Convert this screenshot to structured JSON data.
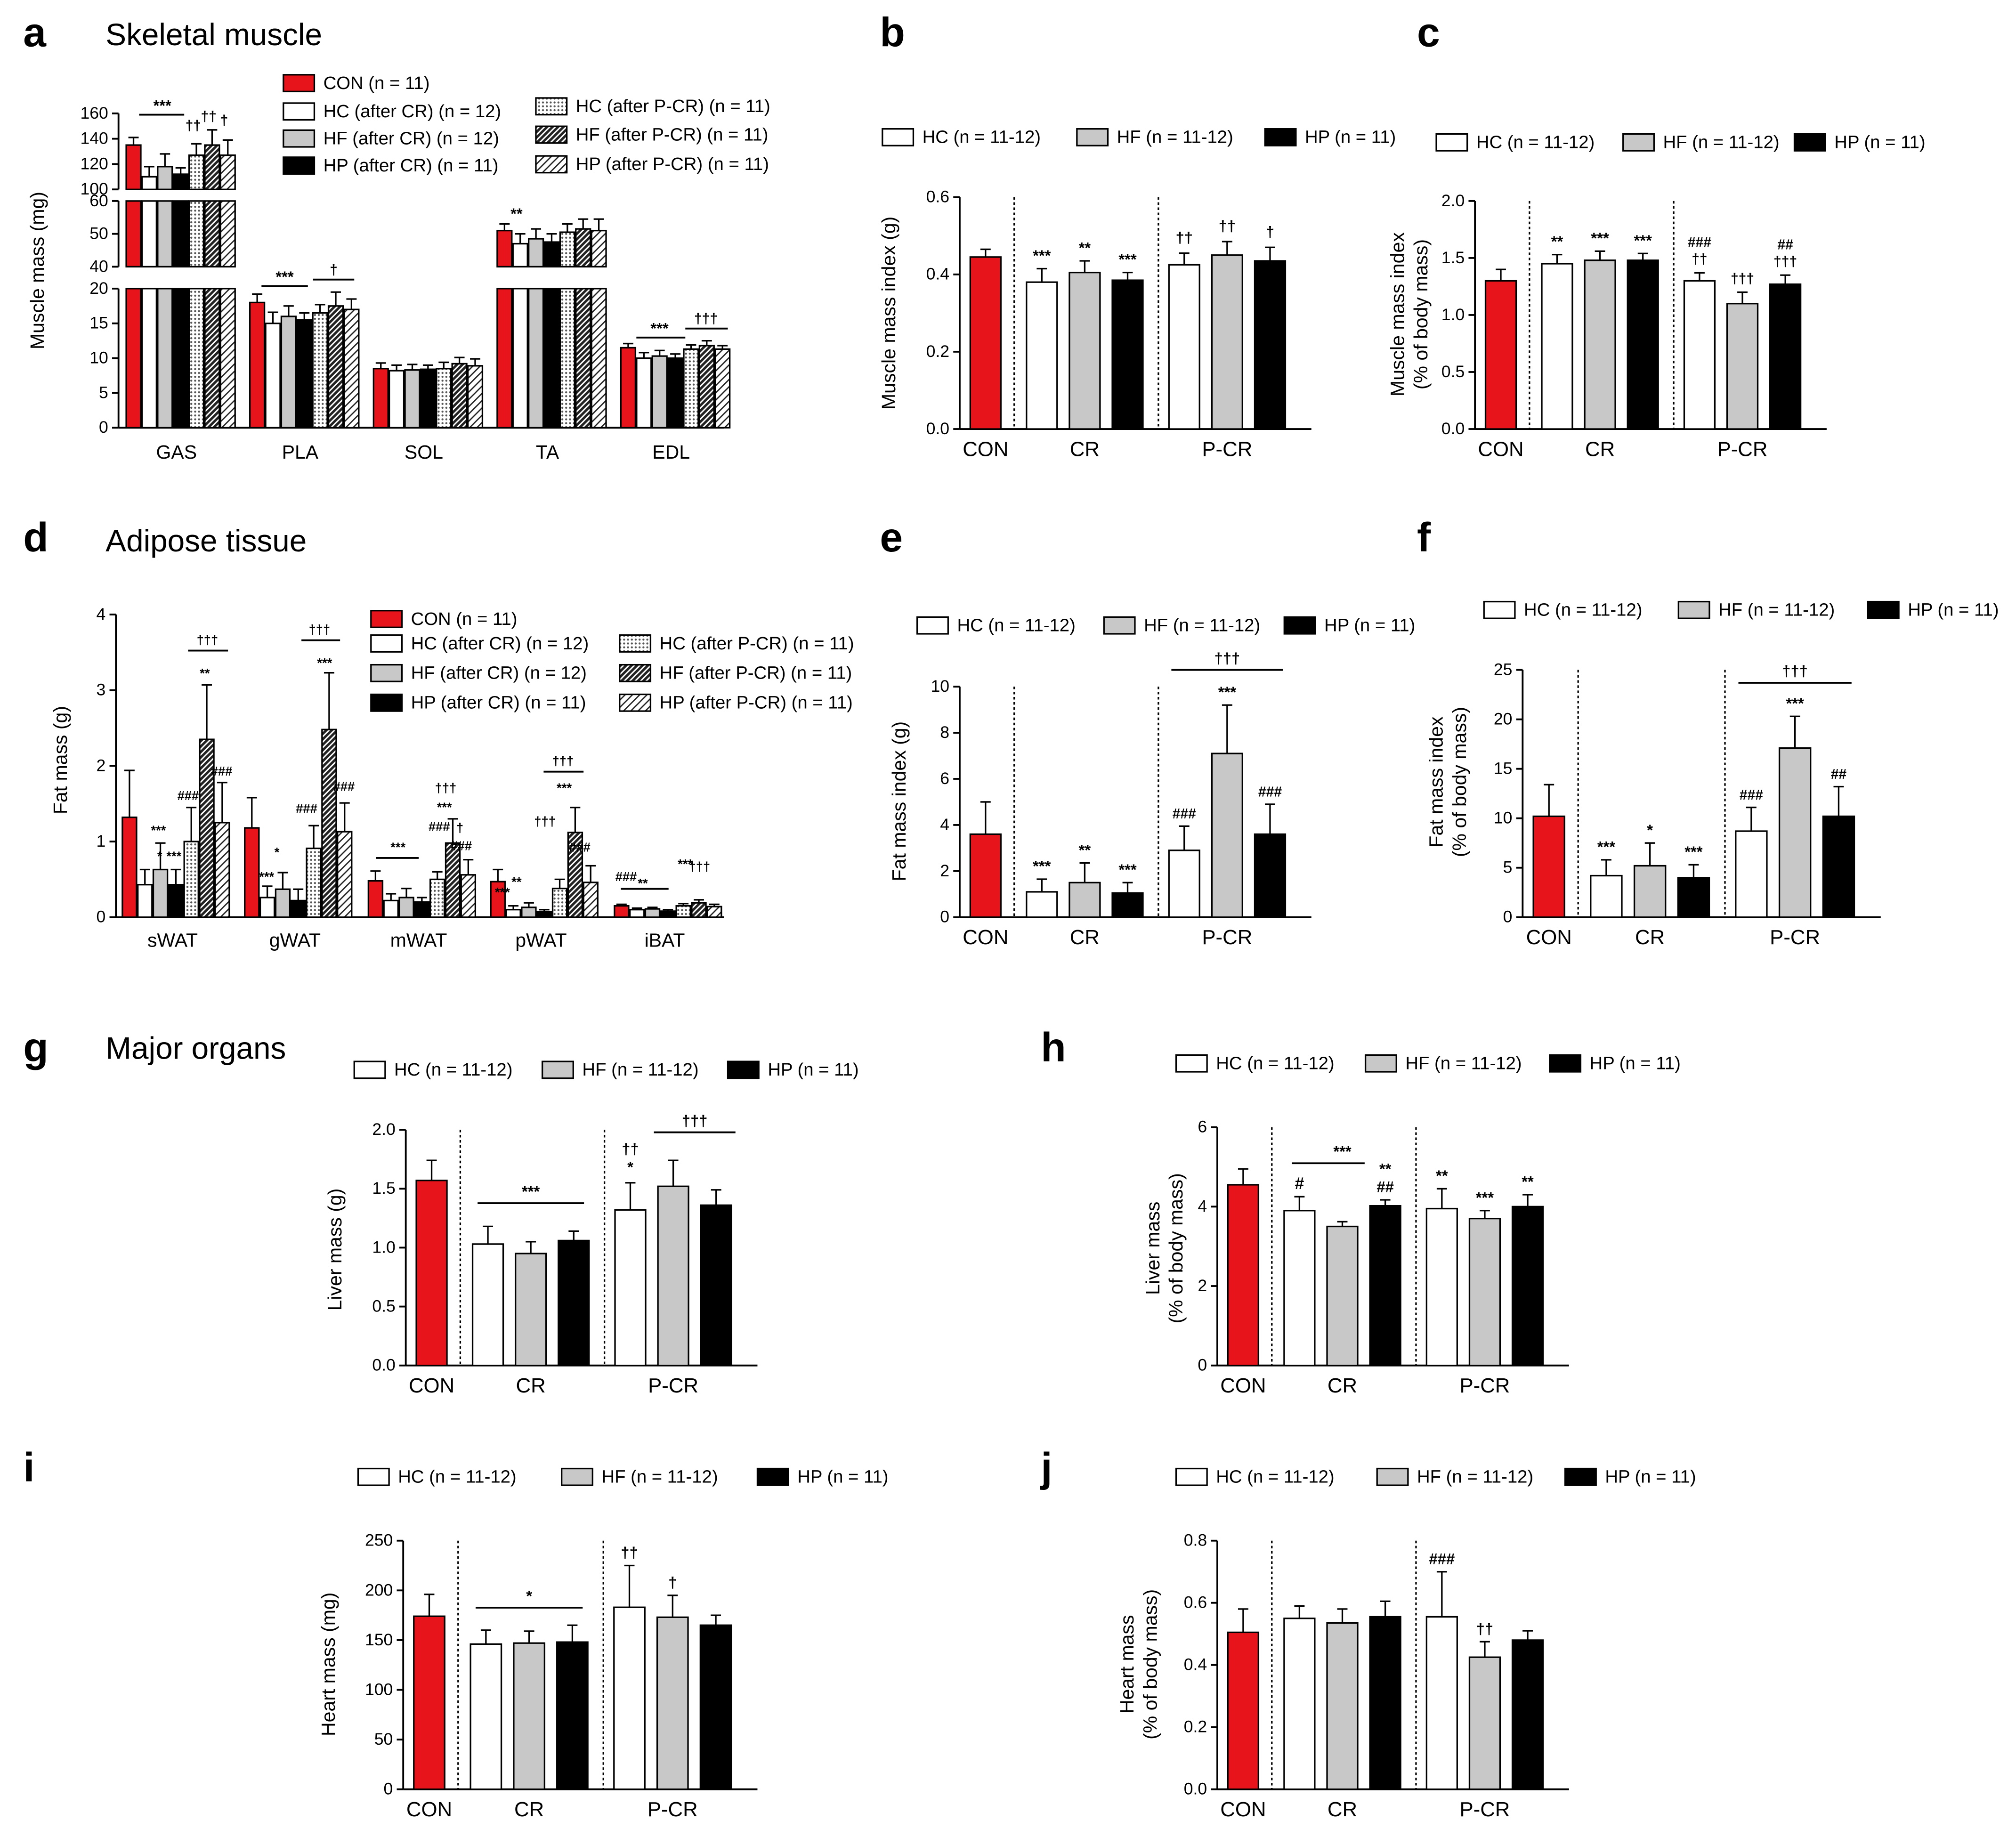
{
  "colors": {
    "con": "#e8141b",
    "hc": "#ffffff",
    "hf": "#c8c8c8",
    "hp": "#000000",
    "dagger": "#1f4e79",
    "dagger2": "#c0001a",
    "axis": "#000000"
  },
  "headings": {
    "a": "Skeletal muscle",
    "d": "Adipose tissue",
    "g": "Major organs"
  },
  "legend_labels": {
    "con": "CON (n = 11)",
    "hc_cr": "HC (after CR) (n = 12)",
    "hf_cr": "HF (after CR) (n = 12)",
    "hp_cr": "HP (after CR) (n = 11)",
    "hc_pcr": "HC (after P-CR) (n = 11)",
    "hf_pcr": "HF (after P-CR) (n = 11)",
    "hp_pcr": "HP (after P-CR) (n = 11)",
    "hc": "HC (n = 11-12)",
    "hf": "HF (n = 11-12)",
    "hp": "HP (n = 11)"
  },
  "chart_data": [
    {
      "panel": "a",
      "type": "bar",
      "title": "Skeletal muscle",
      "ylabel": "Muscle mass (mg)",
      "categories": [
        "GAS",
        "PLA",
        "SOL",
        "TA",
        "EDL"
      ],
      "axis_segments": [
        {
          "range": [
            100,
            160
          ],
          "ticks": [
            "100",
            "120",
            "140",
            "160"
          ]
        },
        {
          "range": [
            40,
            60
          ],
          "ticks": [
            "40",
            "50",
            "60"
          ]
        },
        {
          "range": [
            0,
            20
          ],
          "ticks": [
            "0",
            "5",
            "10",
            "15",
            "20"
          ]
        }
      ],
      "series": [
        {
          "name": "CON (n = 11)",
          "values": [
            135,
            18,
            8.5,
            51,
            11.5
          ],
          "errors": [
            6,
            1.2,
            0.8,
            2,
            0.6
          ]
        },
        {
          "name": "HC (after CR) (n = 12)",
          "values": [
            110,
            15,
            8.2,
            47,
            10
          ],
          "errors": [
            8,
            1.6,
            0.8,
            3,
            0.8
          ]
        },
        {
          "name": "HF (after CR) (n = 12)",
          "values": [
            118,
            16,
            8.3,
            48.5,
            10.3
          ],
          "errors": [
            10,
            1.5,
            0.8,
            3,
            0.8
          ]
        },
        {
          "name": "HP (after CR) (n = 11)",
          "values": [
            112,
            15.5,
            8.4,
            47.5,
            10
          ],
          "errors": [
            5,
            1,
            0.6,
            2.5,
            0.6
          ]
        },
        {
          "name": "HC (after P-CR) (n = 11)",
          "values": [
            127,
            16.5,
            8.5,
            50.5,
            11.3
          ],
          "errors": [
            9,
            1.2,
            0.9,
            2.5,
            0.6
          ]
        },
        {
          "name": "HF (after P-CR) (n = 11)",
          "values": [
            135,
            17.5,
            9.2,
            51.5,
            11.8
          ],
          "errors": [
            12,
            2,
            0.9,
            3,
            0.7
          ]
        },
        {
          "name": "HP (after P-CR) (n = 11)",
          "values": [
            127,
            17,
            8.9,
            51,
            11.3
          ],
          "errors": [
            12,
            1.5,
            1,
            3.5,
            0.5
          ]
        }
      ],
      "annotations": [
        "***",
        "††",
        "††",
        "†",
        "***",
        "†",
        "**",
        "***",
        "†††"
      ]
    },
    {
      "panel": "b",
      "type": "bar",
      "ylabel": "Muscle mass index (g)",
      "groups": [
        "CON",
        "CR",
        "P-CR"
      ],
      "ylim": [
        0,
        0.6
      ],
      "ticks": [
        "0.0",
        "0.2",
        "0.4",
        "0.6"
      ],
      "series": [
        {
          "name": "CON",
          "values": [
            0.445
          ],
          "errors": [
            0.02
          ]
        },
        {
          "name": "HC (n = 11-12)",
          "values": [
            0.38,
            0.425
          ],
          "errors": [
            0.035,
            0.03
          ]
        },
        {
          "name": "HF (n = 11-12)",
          "values": [
            0.405,
            0.45
          ],
          "errors": [
            0.03,
            0.035
          ]
        },
        {
          "name": "HP (n = 11)",
          "values": [
            0.385,
            0.435
          ],
          "errors": [
            0.02,
            0.035
          ]
        }
      ],
      "annotations": [
        "***",
        "**",
        "***",
        "††",
        "††",
        "†"
      ]
    },
    {
      "panel": "c",
      "type": "bar",
      "ylabel": "Muscle mass index (% of body mass)",
      "groups": [
        "CON",
        "CR",
        "P-CR"
      ],
      "ylim": [
        0,
        2.0
      ],
      "ticks": [
        "0.0",
        "0.5",
        "1.0",
        "1.5",
        "2.0"
      ],
      "series": [
        {
          "name": "CON",
          "values": [
            1.3
          ],
          "errors": [
            0.1
          ]
        },
        {
          "name": "HC (n = 11-12)",
          "values": [
            1.45,
            1.3
          ],
          "errors": [
            0.08,
            0.07
          ]
        },
        {
          "name": "HF (n = 11-12)",
          "values": [
            1.48,
            1.1
          ],
          "errors": [
            0.08,
            0.1
          ]
        },
        {
          "name": "HP (n = 11)",
          "values": [
            1.48,
            1.27
          ],
          "errors": [
            0.06,
            0.08
          ]
        }
      ],
      "annotations": [
        "**",
        "***",
        "***",
        "###",
        "††",
        "†††",
        "##",
        "†††"
      ]
    },
    {
      "panel": "d",
      "type": "bar",
      "title": "Adipose tissue",
      "ylabel": "Fat mass (g)",
      "categories": [
        "sWAT",
        "gWAT",
        "mWAT",
        "pWAT",
        "iBAT"
      ],
      "ylim": [
        0,
        4
      ],
      "ticks": [
        "0",
        "1",
        "2",
        "3",
        "4"
      ],
      "series": [
        {
          "name": "CON (n = 11)",
          "values": [
            1.32,
            1.18,
            0.48,
            0.47,
            0.15
          ],
          "errors": [
            0.62,
            0.4,
            0.13,
            0.16,
            0.02
          ]
        },
        {
          "name": "HC (after CR) (n = 12)",
          "values": [
            0.43,
            0.26,
            0.22,
            0.1,
            0.1
          ],
          "errors": [
            0.2,
            0.15,
            0.09,
            0.05,
            0.02
          ]
        },
        {
          "name": "HF (after CR) (n = 12)",
          "values": [
            0.63,
            0.37,
            0.26,
            0.13,
            0.11
          ],
          "errors": [
            0.35,
            0.22,
            0.12,
            0.06,
            0.02
          ]
        },
        {
          "name": "HP (after CR) (n = 11)",
          "values": [
            0.43,
            0.22,
            0.2,
            0.07,
            0.08
          ],
          "errors": [
            0.2,
            0.15,
            0.06,
            0.03,
            0.02
          ]
        },
        {
          "name": "HC (after P-CR) (n = 11)",
          "values": [
            1,
            0.91,
            0.5,
            0.38,
            0.15
          ],
          "errors": [
            0.45,
            0.3,
            0.1,
            0.12,
            0.03
          ]
        },
        {
          "name": "HF (after P-CR) (n = 11)",
          "values": [
            2.35,
            2.48,
            0.98,
            1.12,
            0.19
          ],
          "errors": [
            0.72,
            0.75,
            0.32,
            0.33,
            0.04
          ]
        },
        {
          "name": "HP (after P-CR) (n = 11)",
          "values": [
            1.25,
            1.13,
            0.56,
            0.46,
            0.14
          ],
          "errors": [
            0.53,
            0.38,
            0.2,
            0.22,
            0.03
          ]
        }
      ],
      "annotations": [
        "†††",
        "**",
        "***",
        "*",
        "***",
        "###",
        "###",
        "†††",
        "***",
        "*",
        "***",
        "###",
        "###",
        "***",
        "†††",
        "***",
        "###",
        "†",
        "###",
        "†††",
        "**",
        "***",
        "†††",
        "***",
        "###",
        "###",
        "**",
        "***",
        "†††",
        "†"
      ]
    },
    {
      "panel": "e",
      "type": "bar",
      "ylabel": "Fat mass index (g)",
      "groups": [
        "CON",
        "CR",
        "P-CR"
      ],
      "ylim": [
        0,
        10
      ],
      "ticks": [
        "0",
        "2",
        "4",
        "6",
        "8",
        "10"
      ],
      "series": [
        {
          "name": "CON",
          "values": [
            3.6
          ],
          "errors": [
            1.4
          ]
        },
        {
          "name": "HC (n = 11-12)",
          "values": [
            1.1,
            2.9
          ],
          "errors": [
            0.55,
            1.05
          ]
        },
        {
          "name": "HF (n = 11-12)",
          "values": [
            1.5,
            7.1
          ],
          "errors": [
            0.85,
            2.1
          ]
        },
        {
          "name": "HP (n = 11)",
          "values": [
            1.05,
            3.6
          ],
          "errors": [
            0.45,
            1.3
          ]
        }
      ],
      "annotations": [
        "***",
        "**",
        "***",
        "†††",
        "***",
        "###",
        "###"
      ]
    },
    {
      "panel": "f",
      "type": "bar",
      "ylabel": "Fat mass index (% of body mass)",
      "groups": [
        "CON",
        "CR",
        "P-CR"
      ],
      "ylim": [
        0,
        25
      ],
      "ticks": [
        "0",
        "5",
        "10",
        "15",
        "20",
        "25"
      ],
      "series": [
        {
          "name": "CON",
          "values": [
            10.2
          ],
          "errors": [
            3.2
          ]
        },
        {
          "name": "HC (n = 11-12)",
          "values": [
            4.2,
            8.7
          ],
          "errors": [
            1.6,
            2.4
          ]
        },
        {
          "name": "HF (n = 11-12)",
          "values": [
            5.2,
            17.1
          ],
          "errors": [
            2.3,
            3.2
          ]
        },
        {
          "name": "HP (n = 11)",
          "values": [
            4,
            10.2
          ],
          "errors": [
            1.3,
            3
          ]
        }
      ],
      "annotations": [
        "***",
        "*",
        "***",
        "†††",
        "***",
        "###",
        "##"
      ]
    },
    {
      "panel": "g",
      "type": "bar",
      "title": "Major organs",
      "ylabel": "Liver mass (g)",
      "groups": [
        "CON",
        "CR",
        "P-CR"
      ],
      "ylim": [
        0,
        2.0
      ],
      "ticks": [
        "0.0",
        "0.5",
        "1.0",
        "1.5",
        "2.0"
      ],
      "series": [
        {
          "name": "CON",
          "values": [
            1.57
          ],
          "errors": [
            0.17
          ]
        },
        {
          "name": "HC (n = 11-12)",
          "values": [
            1.03,
            1.32
          ],
          "errors": [
            0.15,
            0.23
          ]
        },
        {
          "name": "HF (n = 11-12)",
          "values": [
            0.95,
            1.52
          ],
          "errors": [
            0.1,
            0.22
          ]
        },
        {
          "name": "HP (n = 11)",
          "values": [
            1.06,
            1.36
          ],
          "errors": [
            0.08,
            0.13
          ]
        }
      ],
      "annotations": [
        "***",
        "††",
        "*",
        "†††"
      ]
    },
    {
      "panel": "h",
      "type": "bar",
      "ylabel": "Liver mass (% of body mass)",
      "groups": [
        "CON",
        "CR",
        "P-CR"
      ],
      "ylim": [
        0,
        6
      ],
      "ticks": [
        "0",
        "2",
        "4",
        "6"
      ],
      "series": [
        {
          "name": "CON",
          "values": [
            4.55
          ],
          "errors": [
            0.4
          ]
        },
        {
          "name": "HC (n = 11-12)",
          "values": [
            3.9,
            3.95
          ],
          "errors": [
            0.35,
            0.5
          ]
        },
        {
          "name": "HF (n = 11-12)",
          "values": [
            3.5,
            3.7
          ],
          "errors": [
            0.12,
            0.2
          ]
        },
        {
          "name": "HP (n = 11)",
          "values": [
            4.02,
            4
          ],
          "errors": [
            0.15,
            0.3
          ]
        }
      ],
      "annotations": [
        "#",
        "***",
        "**",
        "##",
        "**",
        "***",
        "**"
      ]
    },
    {
      "panel": "i",
      "type": "bar",
      "ylabel": "Heart mass (mg)",
      "groups": [
        "CON",
        "CR",
        "P-CR"
      ],
      "ylim": [
        0,
        250
      ],
      "ticks": [
        "0",
        "50",
        "100",
        "150",
        "200",
        "250"
      ],
      "series": [
        {
          "name": "CON",
          "values": [
            174
          ],
          "errors": [
            22
          ]
        },
        {
          "name": "HC (n = 11-12)",
          "values": [
            146,
            183
          ],
          "errors": [
            14,
            42
          ]
        },
        {
          "name": "HF (n = 11-12)",
          "values": [
            147,
            173
          ],
          "errors": [
            12,
            22
          ]
        },
        {
          "name": "HP (n = 11)",
          "values": [
            148,
            165
          ],
          "errors": [
            17,
            10
          ]
        }
      ],
      "annotations": [
        "*",
        "††",
        "†"
      ]
    },
    {
      "panel": "j",
      "type": "bar",
      "ylabel": "Heart mass (% of body mass)",
      "groups": [
        "CON",
        "CR",
        "P-CR"
      ],
      "ylim": [
        0,
        0.8
      ],
      "ticks": [
        "0.0",
        "0.2",
        "0.4",
        "0.6",
        "0.8"
      ],
      "series": [
        {
          "name": "CON",
          "values": [
            0.505
          ],
          "errors": [
            0.075
          ]
        },
        {
          "name": "HC (n = 11-12)",
          "values": [
            0.55,
            0.555
          ],
          "errors": [
            0.04,
            0.145
          ]
        },
        {
          "name": "HF (n = 11-12)",
          "values": [
            0.535,
            0.425
          ],
          "errors": [
            0.045,
            0.05
          ]
        },
        {
          "name": "HP (n = 11)",
          "values": [
            0.555,
            0.48
          ],
          "errors": [
            0.05,
            0.03
          ]
        }
      ],
      "annotations": [
        "###",
        "††"
      ]
    }
  ]
}
